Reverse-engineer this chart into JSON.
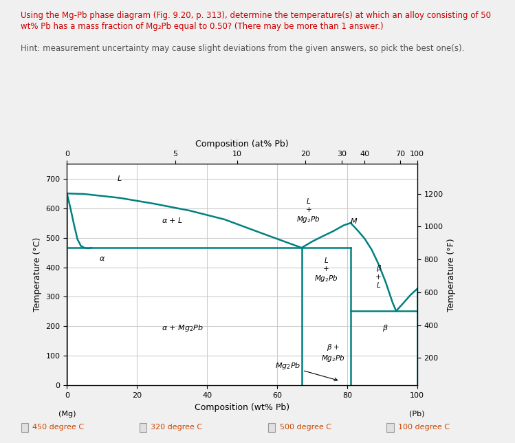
{
  "line_color": "#008080",
  "bg_color": "#f0f0f0",
  "plot_bg": "#ffffff",
  "grid_color": "#cccccc",
  "xlabel": "Composition (wt% Pb)",
  "ylabel": "Temperature (°C)",
  "ylabel_right": "Temperature (°F)",
  "top_axis_label": "Composition (at% Pb)",
  "top_axis_ticks": [
    0,
    5,
    10,
    20,
    30,
    40,
    70,
    100
  ],
  "right_axis_ticks_F": [
    200,
    400,
    600,
    800,
    1000,
    1200
  ],
  "footer_options": [
    "450 degree C",
    "320 degree C",
    "500 degree C",
    "100 degree C"
  ],
  "title_line1": "Using the Mg-Pb phase diagram (Fig. 9.20, p. 313), determine the temperature(s) at which an alloy consisting of 50",
  "title_line2": "wt% Pb has a mass fraction of Mg₂Pb equal to 0.50? (There may be more than 1 answer.)",
  "hint_text": "Hint: measurement uncertainty may cause slight deviations from the given answers, so pick the best one(s)."
}
